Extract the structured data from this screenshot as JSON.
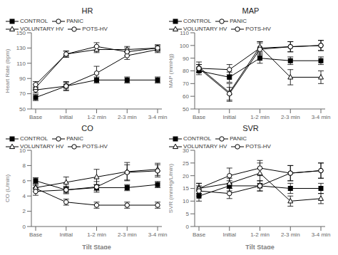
{
  "chart_data": [
    {
      "type": "line",
      "title": "HR",
      "y_label": "Heart Rate (bpm)",
      "categories": [
        "Base",
        "Initial",
        "1-2 min",
        "2-3 min",
        "3-4 min"
      ],
      "ylim": [
        50,
        150
      ],
      "yticks": [
        50,
        70,
        90,
        110,
        130,
        150
      ],
      "grid": false,
      "legend": "upper left",
      "series": [
        {
          "name": "CONTROL",
          "color": "black",
          "marker": "square",
          "values": [
            65,
            80,
            88,
            88,
            88
          ],
          "yerr": [
            4,
            5,
            4,
            4,
            4
          ]
        },
        {
          "name": "PANIC",
          "color": "black",
          "marker": "open_circle",
          "values": [
            75,
            80,
            97,
            120,
            128
          ],
          "yerr": [
            4,
            6,
            9,
            5,
            4
          ]
        },
        {
          "name": "VOLUNTARY HV",
          "color": "black",
          "marker": "open_triangle",
          "values": [
            78,
            122,
            128,
            128,
            130
          ],
          "yerr": [
            4,
            4,
            4,
            4,
            4
          ]
        },
        {
          "name": "POTS-HV",
          "color": "black",
          "marker": "open_circle",
          "values": [
            82,
            122,
            132,
            125,
            130
          ],
          "yerr": [
            4,
            4,
            5,
            5,
            4
          ]
        }
      ]
    },
    {
      "type": "line",
      "title": "MAP",
      "y_label": "MAP (mmHg)",
      "categories": [
        "Base",
        "Initial",
        "1-2 min",
        "2-3 min",
        "3-4 min"
      ],
      "ylim": [
        50,
        110
      ],
      "yticks": [
        50,
        60,
        70,
        80,
        90,
        100,
        110
      ],
      "grid": false,
      "legend": "upper left",
      "series": [
        {
          "name": "CONTROL",
          "color": "black",
          "marker": "square",
          "values": [
            80,
            75,
            90,
            88,
            88
          ],
          "yerr": [
            3,
            4,
            4,
            3,
            3
          ]
        },
        {
          "name": "PANIC",
          "color": "black",
          "marker": "open_circle",
          "values": [
            82,
            81,
            98,
            99,
            100
          ],
          "yerr": [
            3,
            4,
            5,
            4,
            4
          ]
        },
        {
          "name": "VOLUNTARY HV",
          "color": "black",
          "marker": "open_triangle",
          "values": [
            83,
            63,
            99,
            75,
            75
          ],
          "yerr": [
            4,
            7,
            4,
            6,
            5
          ]
        },
        {
          "name": "POTS-HV",
          "color": "black",
          "marker": "open_circle",
          "values": [
            82,
            62,
            97,
            99,
            100
          ],
          "yerr": [
            3,
            5,
            5,
            4,
            4
          ]
        }
      ]
    },
    {
      "type": "line",
      "title": "CO",
      "x_label": "Tilt Stage",
      "y_label": "CO (L/min)",
      "categories": [
        "Base",
        "Initial",
        "1-2 min",
        "2-3 min",
        "3-4 min"
      ],
      "ylim": [
        0,
        10
      ],
      "yticks": [
        0,
        2,
        4,
        6,
        8,
        10
      ],
      "grid": false,
      "legend": "upper left",
      "series": [
        {
          "name": "CONTROL",
          "color": "black",
          "marker": "square",
          "values": [
            6.0,
            4.8,
            5.1,
            5.1,
            5.5
          ],
          "yerr": [
            0.4,
            0.4,
            0.4,
            0.4,
            0.4
          ]
        },
        {
          "name": "PANIC",
          "color": "black",
          "marker": "open_circle",
          "values": [
            5.0,
            3.2,
            2.8,
            2.8,
            2.8
          ],
          "yerr": [
            0.4,
            0.4,
            0.4,
            0.4,
            0.4
          ]
        },
        {
          "name": "VOLUNTARY HV",
          "color": "black",
          "marker": "open_triangle",
          "values": [
            5.1,
            5.8,
            6.5,
            7.2,
            7.5
          ],
          "yerr": [
            0.5,
            0.7,
            1.0,
            1.2,
            0.8
          ]
        },
        {
          "name": "POTS-HV",
          "color": "black",
          "marker": "open_circle",
          "values": [
            4.6,
            4.8,
            5.2,
            7.1,
            7.3
          ],
          "yerr": [
            0.5,
            0.5,
            0.7,
            1.0,
            0.8
          ]
        }
      ]
    },
    {
      "type": "line",
      "title": "SVR",
      "x_label": "Tilt Stage",
      "y_label": "SVR (mmHg/L/min)",
      "categories": [
        "Base",
        "Initial",
        "1-2 min",
        "2-3 min",
        "3-4 min"
      ],
      "ylim": [
        0,
        30
      ],
      "yticks": [
        0,
        5,
        10,
        15,
        20,
        25,
        30
      ],
      "grid": false,
      "legend": "upper left",
      "series": [
        {
          "name": "CONTROL",
          "color": "black",
          "marker": "square",
          "values": [
            12,
            16,
            16,
            15,
            15
          ],
          "yerr": [
            2,
            2,
            2,
            2,
            2
          ]
        },
        {
          "name": "PANIC",
          "color": "black",
          "marker": "open_circle",
          "values": [
            15,
            20,
            23,
            21,
            22
          ],
          "yerr": [
            2,
            3,
            3,
            3,
            3
          ]
        },
        {
          "name": "VOLUNTARY HV",
          "color": "black",
          "marker": "open_triangle",
          "values": [
            15,
            17,
            21,
            10,
            11
          ],
          "yerr": [
            2,
            2,
            4,
            2,
            2
          ]
        },
        {
          "name": "POTS-HV",
          "color": "black",
          "marker": "open_circle",
          "values": [
            14,
            13,
            16,
            21,
            22
          ],
          "yerr": [
            2,
            2,
            2,
            3,
            3
          ]
        }
      ]
    }
  ]
}
